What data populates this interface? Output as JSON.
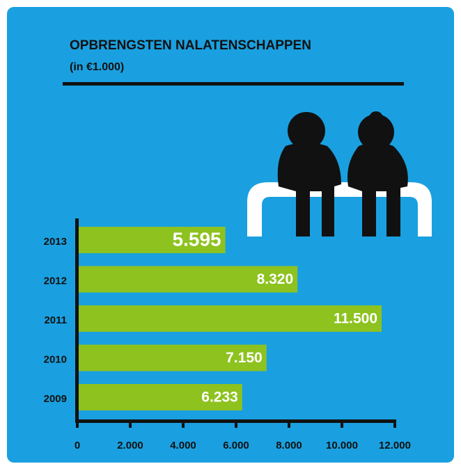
{
  "chart_data": {
    "type": "bar",
    "orientation": "horizontal",
    "title": "OPBRENGSTEN NALATENSCHAPPEN",
    "subtitle": "(in €1.000)",
    "categories": [
      "2013",
      "2012",
      "2011",
      "2010",
      "2009"
    ],
    "values": [
      5595,
      8320,
      11500,
      7150,
      6233
    ],
    "value_labels": [
      "5.595",
      "8.320",
      "11.500",
      "7.150",
      "6.233"
    ],
    "color": "#8dc21f",
    "xlim": [
      0,
      12000
    ],
    "xticks": [
      0,
      {
        "value": 2000,
        "label": "2.000"
      },
      {
        "value": 4000,
        "label": "4.000"
      },
      {
        "value": 6000,
        "label": "6.000"
      },
      {
        "value": 8000,
        "label": "8.000"
      },
      {
        "value": 10000,
        "label": "10.000"
      },
      {
        "value": 12000,
        "label": "12.000"
      }
    ]
  }
}
